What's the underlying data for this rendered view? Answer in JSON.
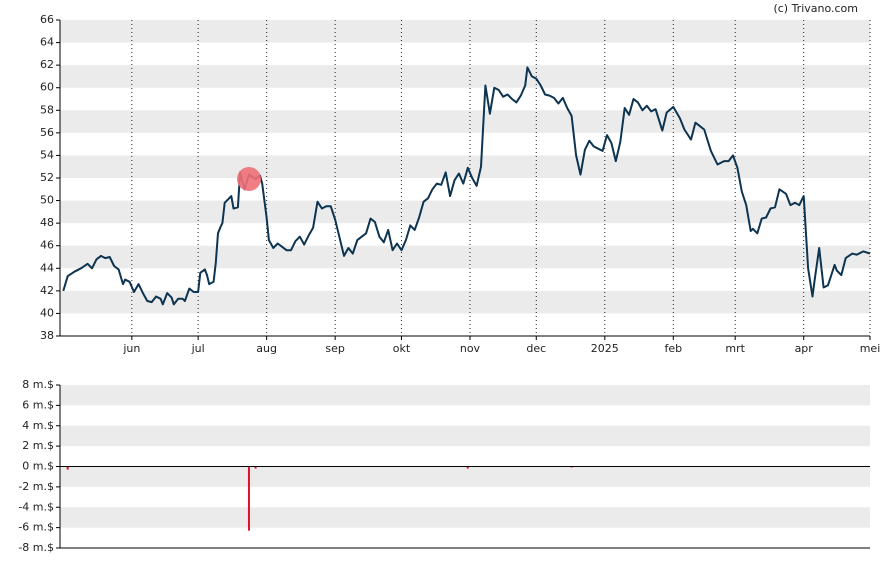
{
  "watermark": "(c) Trivano.com",
  "chart_data": [
    {
      "type": "line",
      "x": [
        0,
        2,
        5,
        8,
        11,
        13,
        15,
        17,
        19,
        21,
        23,
        25,
        27,
        28,
        30,
        32,
        34,
        36,
        38,
        40,
        42,
        44,
        45,
        47,
        49,
        50,
        52,
        54,
        55,
        57,
        59,
        61,
        62,
        64,
        65,
        66,
        68,
        69,
        70,
        71,
        72,
        73,
        76,
        77,
        79,
        80,
        82,
        84,
        87,
        89,
        90,
        92,
        93,
        95,
        97,
        99,
        101,
        103,
        105,
        107,
        109,
        111,
        113,
        115,
        117,
        119,
        121,
        123,
        125,
        127,
        129,
        131,
        133,
        135,
        137,
        139,
        141,
        143,
        145,
        147,
        149,
        151,
        153,
        155,
        157,
        159,
        161,
        163,
        165,
        167,
        169,
        171,
        173,
        175,
        177,
        179,
        181,
        183,
        185,
        187,
        189,
        191,
        193,
        195,
        197,
        199,
        201,
        203,
        205,
        207,
        209,
        210,
        212,
        214,
        216,
        218,
        220,
        222,
        224,
        226,
        228,
        230,
        232,
        234,
        236,
        238,
        240,
        242,
        244,
        246,
        248,
        250,
        252,
        254,
        256,
        258,
        260,
        262,
        264,
        266,
        268,
        271,
        273,
        276,
        279,
        281,
        284,
        286,
        288,
        290,
        293,
        296,
        299,
        301,
        303,
        305,
        307,
        309,
        311,
        312,
        314,
        316,
        318,
        320,
        322,
        324,
        327,
        329,
        331,
        333,
        335,
        337,
        339,
        340,
        342,
        344,
        346,
        349,
        350,
        352,
        354,
        357,
        359,
        362,
        365
      ],
      "series": [
        {
          "color": "#0d3451",
          "values": [
            42,
            43.3,
            43.7,
            44,
            44.4,
            44,
            44.8,
            45.1,
            44.9,
            45,
            44.2,
            43.9,
            42.6,
            43,
            42.8,
            41.9,
            42.6,
            41.8,
            41.1,
            41,
            41.5,
            41.3,
            40.8,
            41.8,
            41.4,
            40.8,
            41.3,
            41.3,
            41.1,
            42.2,
            41.9,
            41.9,
            43.6,
            43.9,
            43.4,
            42.6,
            42.8,
            44.5,
            47.1,
            47.6,
            48,
            49.8,
            50.4,
            49.3,
            49.4,
            52.5,
            51,
            52.3,
            51.9,
            52.2,
            51.5,
            48.5,
            46.5,
            45.8,
            46.2,
            45.9,
            45.6,
            45.6,
            46.4,
            46.8,
            46.1,
            46.9,
            47.6,
            49.9,
            49.3,
            49.5,
            49.5,
            48.3,
            46.7,
            45.1,
            45.8,
            45.3,
            46.5,
            46.8,
            47.1,
            48.4,
            48.1,
            46.8,
            46.3,
            47.4,
            45.6,
            46.2,
            45.6,
            46.5,
            47.8,
            47.4,
            48.5,
            49.9,
            50.2,
            51,
            51.5,
            51.4,
            52.5,
            50.4,
            51.8,
            52.4,
            51.5,
            52.9,
            52,
            51.3,
            53,
            60.2,
            57.7,
            60,
            59.8,
            59.2,
            59.4,
            59,
            58.7,
            59.3,
            60.2,
            61.8,
            61,
            60.8,
            60.2,
            59.4,
            59.3,
            59.1,
            58.6,
            59.1,
            58.2,
            57.5,
            54,
            52.3,
            54.5,
            55.3,
            54.8,
            54.6,
            54.4,
            55.8,
            55.1,
            53.5,
            55.2,
            58.2,
            57.6,
            59,
            58.7,
            58,
            58.4,
            57.9,
            58.1,
            56.2,
            57.8,
            58.3,
            57.3,
            56.3,
            55.4,
            56.9,
            56.6,
            56.3,
            54.4,
            53.2,
            53.5,
            53.5,
            54,
            52.9,
            50.8,
            49.6,
            47.3,
            47.5,
            47.1,
            48.4,
            48.5,
            49.3,
            49.4,
            51,
            50.6,
            49.6,
            49.8,
            49.6,
            50.4,
            44,
            41.5,
            43,
            45.8,
            42.3,
            42.5,
            44.3,
            43.8,
            43.4,
            44.9,
            45.3,
            45.2,
            45.5,
            45.3
          ]
        }
      ],
      "xlim": [
        -1.5,
        365
      ],
      "xticks": [
        {
          "value": 31,
          "label": "jun"
        },
        {
          "value": 61,
          "label": "jul"
        },
        {
          "value": 92,
          "label": "aug"
        },
        {
          "value": 123,
          "label": "sep"
        },
        {
          "value": 153,
          "label": "okt"
        },
        {
          "value": 184,
          "label": "nov"
        },
        {
          "value": 214,
          "label": "dec"
        },
        {
          "value": 245,
          "label": "2025"
        },
        {
          "value": 276,
          "label": "feb"
        },
        {
          "value": 304,
          "label": "mrt"
        },
        {
          "value": 335,
          "label": "apr"
        },
        {
          "value": 365,
          "label": "mei"
        }
      ],
      "ylim": [
        38,
        66
      ],
      "yticks": [
        38,
        40,
        42,
        44,
        46,
        48,
        50,
        52,
        54,
        56,
        58,
        60,
        62,
        64,
        66
      ],
      "grid": true
    },
    {
      "type": "bar",
      "x": [
        2,
        84,
        87,
        183,
        230
      ],
      "values": [
        -0.3,
        -6.3,
        -0.2,
        -0.2,
        -0.1
      ],
      "color": "#e0102c",
      "xlim": [
        -1.5,
        365
      ],
      "ylim": [
        -8,
        8
      ],
      "yticks": [
        {
          "value": -8,
          "label": "-8 m.$"
        },
        {
          "value": -6,
          "label": "-6 m.$"
        },
        {
          "value": -4,
          "label": "-4 m.$"
        },
        {
          "value": -2,
          "label": "-2 m.$"
        },
        {
          "value": 0,
          "label": "0 m.$"
        },
        {
          "value": 2,
          "label": "2 m.$"
        },
        {
          "value": 4,
          "label": "4 m.$"
        },
        {
          "value": 6,
          "label": "6 m.$"
        },
        {
          "value": 8,
          "label": "8 m.$"
        }
      ],
      "grid": true
    }
  ]
}
